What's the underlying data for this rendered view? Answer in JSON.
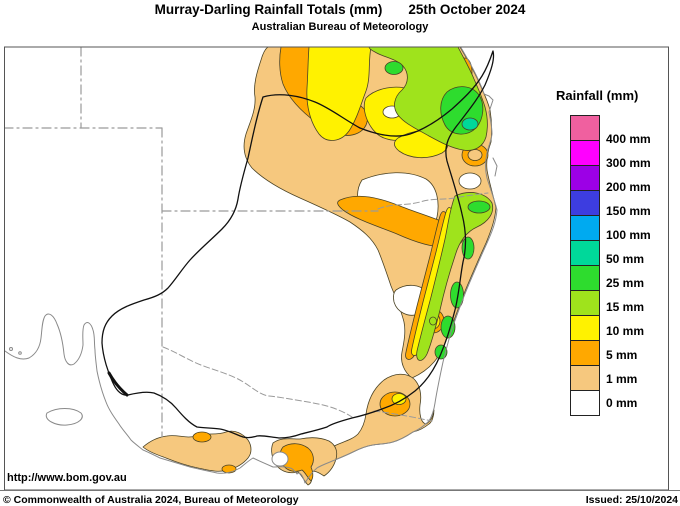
{
  "title": {
    "main": "Murray-Darling Rainfall Totals (mm)",
    "date": "25th October 2024",
    "subtitle": "Australian Bureau of Meteorology"
  },
  "legend": {
    "title": "Rainfall (mm)",
    "entries": [
      {
        "label": "400 mm",
        "color": "#F0609F"
      },
      {
        "label": "300 mm",
        "color": "#FF00FF"
      },
      {
        "label": "200 mm",
        "color": "#9C00E6"
      },
      {
        "label": "150 mm",
        "color": "#3D3DE0"
      },
      {
        "label": "100 mm",
        "color": "#00AAF0"
      },
      {
        "label": "50 mm",
        "color": "#00D89A"
      },
      {
        "label": "25 mm",
        "color": "#2EDC2E"
      },
      {
        "label": "15 mm",
        "color": "#9FE31C"
      },
      {
        "label": "10 mm",
        "color": "#FFF200"
      },
      {
        "label": "5 mm",
        "color": "#FFA800"
      },
      {
        "label": "1 mm",
        "color": "#F6C87E"
      },
      {
        "label": "0 mm",
        "color": "#FFFFFF"
      }
    ]
  },
  "map": {
    "palette": {
      "tan": "#F6C87E",
      "orange": "#FFA800",
      "yellow": "#FFF200",
      "chartreuse": "#9FE31C",
      "green": "#2EDC2E",
      "teal": "#00D89A",
      "white": "#FFFFFF"
    }
  },
  "footer": {
    "url": "http://www.bom.gov.au",
    "copyright": "© Commonwealth of Australia 2024, Bureau of Meteorology",
    "issued": "Issued: 25/10/2024"
  }
}
